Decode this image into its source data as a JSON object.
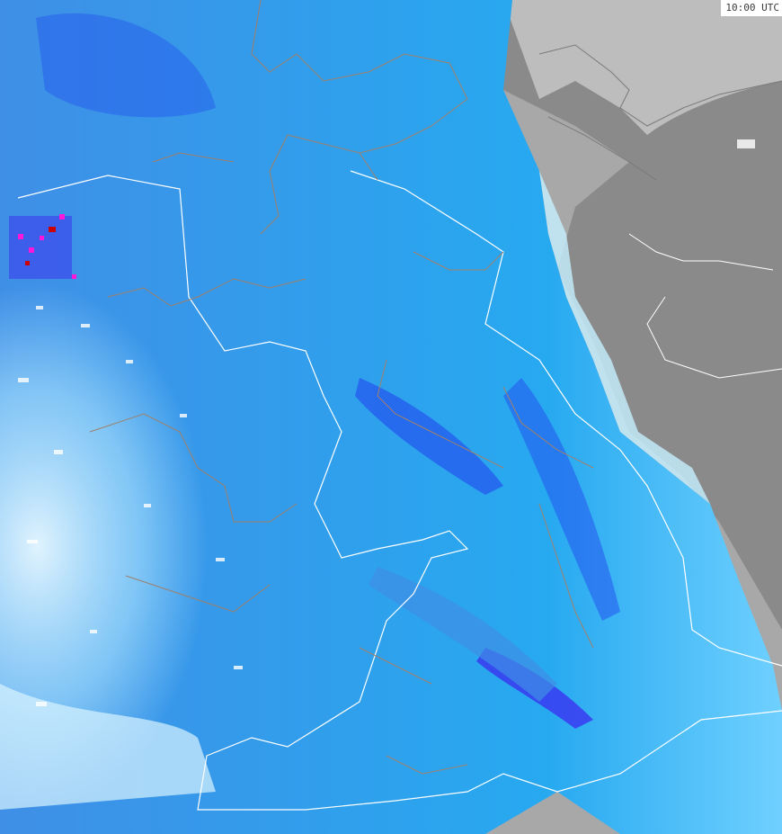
{
  "map": {
    "timestamp": "10:00 UTC",
    "colors": {
      "land_no_data": "#8a8a8a",
      "sea_no_data": "#bdbdbd",
      "light_precip": "#c6f0ff",
      "precip_low": "#27a9f0",
      "precip_mid": "#3f8fe6",
      "precip_high": "#2454ee",
      "precip_very_high": "#3b2bf0",
      "precip_extreme": "#ff18d8",
      "precip_peak": "#cc0000",
      "country_border": "#ffffff",
      "state_border": "#a0806a"
    }
  }
}
